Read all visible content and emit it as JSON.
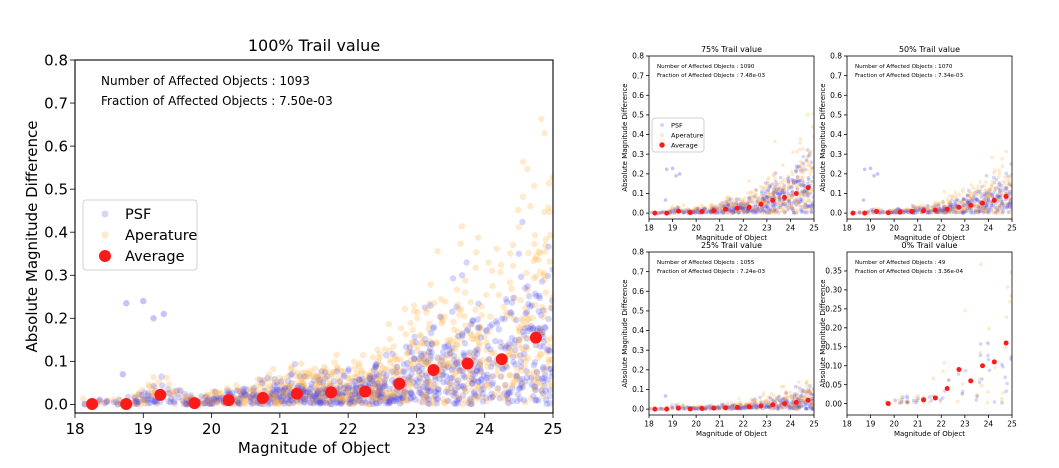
{
  "chart_data": [
    {
      "type": "scatter",
      "title": "100% Trail value",
      "xlabel": "Magnitude of Object",
      "ylabel": "Absolute Magnitude Difference",
      "xlim": [
        18,
        25
      ],
      "ylim": [
        -0.02,
        0.8
      ],
      "xticks": [
        18,
        19,
        20,
        21,
        22,
        23,
        24,
        25
      ],
      "yticks": [
        0.0,
        0.1,
        0.2,
        0.3,
        0.4,
        0.5,
        0.6,
        0.7,
        0.8
      ],
      "annotations": [
        "Number of Affected Objects : 1093",
        "Fraction of Affected Objects : 7.50e-03"
      ],
      "legend": {
        "position": "center-left",
        "entries": [
          "PSF",
          "Aperature",
          "Average"
        ]
      },
      "colors": {
        "psf": "#3b3bf0",
        "aperture": "#ffb347",
        "average": "#ff1a1a"
      },
      "series": [
        {
          "name": "Average",
          "x": [
            18.25,
            18.75,
            19.25,
            19.75,
            20.25,
            20.75,
            21.25,
            21.75,
            22.25,
            22.75,
            23.25,
            23.75,
            24.25,
            24.75
          ],
          "y": [
            0.001,
            0.001,
            0.022,
            0.003,
            0.01,
            0.015,
            0.025,
            0.028,
            0.03,
            0.048,
            0.08,
            0.095,
            0.105,
            0.155
          ]
        }
      ]
    },
    {
      "type": "scatter",
      "title": "75% Trail value",
      "xlabel": "Magnitude of Object",
      "ylabel": "Absolute Magnitude Difference",
      "xlim": [
        18,
        25
      ],
      "ylim": [
        -0.03,
        0.8
      ],
      "xticks": [
        18,
        19,
        20,
        21,
        22,
        23,
        24,
        25
      ],
      "yticks": [
        0.0,
        0.1,
        0.2,
        0.3,
        0.4,
        0.5,
        0.6,
        0.7,
        0.8
      ],
      "annotations": [
        "Number of Affected Objects : 1090",
        "Fraction of Affected Objects : 7.48e-03"
      ],
      "legend": {
        "position": "center-left",
        "entries": [
          "PSF",
          "Aperature",
          "Average"
        ]
      },
      "series": [
        {
          "name": "Average",
          "x": [
            18.25,
            18.75,
            19.25,
            19.75,
            20.25,
            20.75,
            21.25,
            21.75,
            22.25,
            22.75,
            23.25,
            23.75,
            24.25,
            24.75
          ],
          "y": [
            0.0,
            0.0,
            0.01,
            0.003,
            0.008,
            0.012,
            0.02,
            0.025,
            0.03,
            0.045,
            0.065,
            0.08,
            0.1,
            0.13
          ]
        }
      ]
    },
    {
      "type": "scatter",
      "title": "50% Trail value",
      "xlabel": "Magnitude of Object",
      "ylabel": "Absolute Magnitude Difference",
      "xlim": [
        18,
        25
      ],
      "ylim": [
        -0.03,
        0.8
      ],
      "xticks": [
        18,
        19,
        20,
        21,
        22,
        23,
        24,
        25
      ],
      "yticks": [
        0.0,
        0.1,
        0.2,
        0.3,
        0.4,
        0.5,
        0.6,
        0.7,
        0.8
      ],
      "annotations": [
        "Number of Affected Objects : 1070",
        "Fraction of Affected Objects : 7.34e-03"
      ],
      "series": [
        {
          "name": "Average",
          "x": [
            18.25,
            18.75,
            19.25,
            19.75,
            20.25,
            20.75,
            21.25,
            21.75,
            22.25,
            22.75,
            23.25,
            23.75,
            24.25,
            24.75
          ],
          "y": [
            0.0,
            0.0,
            0.008,
            0.002,
            0.005,
            0.008,
            0.012,
            0.015,
            0.02,
            0.03,
            0.04,
            0.05,
            0.065,
            0.085
          ]
        }
      ]
    },
    {
      "type": "scatter",
      "title": "25% Trail value",
      "xlabel": "Magnitude of Object",
      "ylabel": "Absolute Magnitude Difference",
      "xlim": [
        18,
        25
      ],
      "ylim": [
        -0.03,
        0.8
      ],
      "xticks": [
        18,
        19,
        20,
        21,
        22,
        23,
        24,
        25
      ],
      "yticks": [
        0.0,
        0.1,
        0.2,
        0.3,
        0.4,
        0.5,
        0.6,
        0.7,
        0.8
      ],
      "annotations": [
        "Number of Affected Objects : 1055",
        "Fraction of Affected Objects : 7.24e-03"
      ],
      "series": [
        {
          "name": "Average",
          "x": [
            18.25,
            18.75,
            19.25,
            19.75,
            20.25,
            20.75,
            21.25,
            21.75,
            22.25,
            22.75,
            23.25,
            23.75,
            24.25,
            24.75
          ],
          "y": [
            0.0,
            0.0,
            0.005,
            0.001,
            0.003,
            0.005,
            0.007,
            0.009,
            0.012,
            0.016,
            0.022,
            0.028,
            0.035,
            0.045
          ]
        }
      ]
    },
    {
      "type": "scatter",
      "title": "0% Trail value",
      "xlabel": "Magnitude of Object",
      "ylabel": "Absolute Magnitude Difference",
      "xlim": [
        18,
        25
      ],
      "ylim": [
        -0.03,
        0.4
      ],
      "xticks": [
        18,
        19,
        20,
        21,
        22,
        23,
        24,
        25
      ],
      "yticks": [
        0.0,
        0.05,
        0.1,
        0.15,
        0.2,
        0.25,
        0.3,
        0.35
      ],
      "annotations": [
        "Number of Affected Objects : 49",
        "Fraction of Affected Objects : 3.36e-04"
      ],
      "series": [
        {
          "name": "Average",
          "x": [
            19.75,
            21.25,
            21.75,
            22.25,
            22.75,
            23.25,
            23.75,
            24.25,
            24.75
          ],
          "y": [
            0.0,
            0.01,
            0.015,
            0.04,
            0.09,
            0.06,
            0.1,
            0.11,
            0.16
          ]
        }
      ]
    }
  ]
}
